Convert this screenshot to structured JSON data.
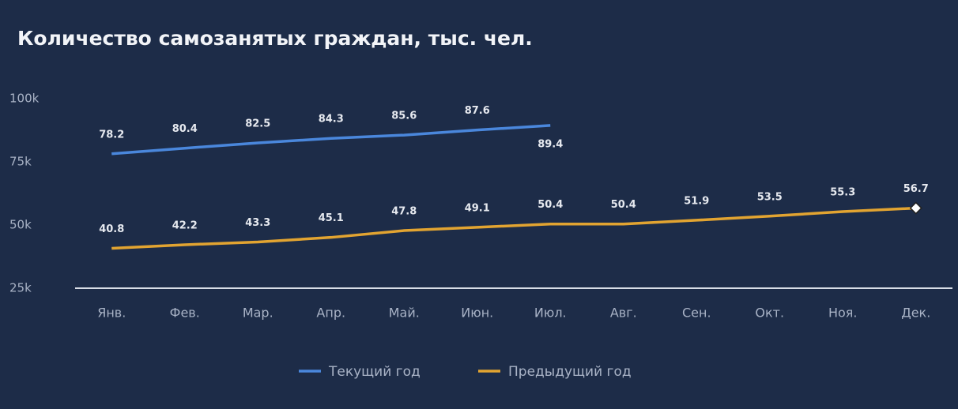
{
  "chart_data": {
    "type": "line",
    "title": "Количество самозанятых граждан, тыс. чел.",
    "categories": [
      "Янв.",
      "Фев.",
      "Мар.",
      "Апр.",
      "Май.",
      "Июн.",
      "Июл.",
      "Авг.",
      "Сен.",
      "Окт.",
      "Ноя.",
      "Дек."
    ],
    "series": [
      {
        "name": "Текущий год",
        "color": "#4a87dc",
        "values": [
          78.2,
          80.4,
          82.5,
          84.3,
          85.6,
          87.6,
          89.4,
          null,
          null,
          null,
          null,
          null
        ]
      },
      {
        "name": "Предыдущий год",
        "color": "#e2a431",
        "values": [
          40.8,
          42.2,
          43.3,
          45.1,
          47.8,
          49.1,
          50.4,
          50.4,
          51.9,
          53.5,
          55.3,
          56.7
        ]
      }
    ],
    "ylim": [
      25,
      100
    ],
    "yticks": [
      {
        "value": 25,
        "label": "25k"
      },
      {
        "value": 50,
        "label": "50k"
      },
      {
        "value": 75,
        "label": "75k"
      },
      {
        "value": 100,
        "label": "100k"
      }
    ],
    "grid": false,
    "legend": "bottom"
  }
}
